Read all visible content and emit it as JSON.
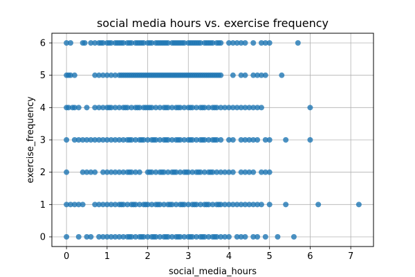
{
  "chart_data": {
    "type": "scatter",
    "title": "social media hours vs. exercise frequency",
    "xlabel": "social_media_hours",
    "ylabel": "exercise_frequency",
    "xlim": [
      -0.36,
      7.56
    ],
    "ylim": [
      -0.3,
      6.3
    ],
    "xticks": [
      0,
      1,
      2,
      3,
      4,
      5,
      6,
      7
    ],
    "yticks": [
      0,
      1,
      2,
      3,
      4,
      5,
      6
    ],
    "grid": true,
    "legend": "none",
    "marker_color": "#1f77b4",
    "marker_alpha": 0.8,
    "series": [
      {
        "y": 6,
        "x": [
          0,
          0.1,
          0.4,
          0.45,
          0.6,
          0.7,
          0.8,
          0.85,
          0.9,
          1.0,
          1.05,
          1.1,
          1.2,
          1.25,
          1.3,
          1.35,
          1.4,
          1.5,
          1.55,
          1.6,
          1.7,
          1.75,
          1.8,
          1.85,
          1.9,
          2.0,
          2.05,
          2.1,
          2.2,
          2.25,
          2.3,
          2.35,
          2.4,
          2.45,
          2.5,
          2.6,
          2.65,
          2.7,
          2.75,
          2.8,
          2.85,
          2.9,
          3.0,
          3.05,
          3.1,
          3.15,
          3.2,
          3.25,
          3.3,
          3.4,
          3.45,
          3.5,
          3.55,
          3.6,
          3.7,
          3.75,
          3.8,
          4.0,
          4.1,
          4.2,
          4.3,
          4.4,
          4.6,
          4.8,
          4.9,
          5.0,
          5.7
        ]
      },
      {
        "y": 5,
        "x": [
          0,
          0.05,
          0.1,
          0.2,
          0.7,
          0.8,
          0.9,
          1.0,
          1.1,
          1.2,
          1.3,
          1.35,
          1.4,
          1.45,
          1.5,
          1.55,
          1.6,
          1.65,
          1.7,
          1.75,
          1.8,
          1.85,
          1.9,
          1.95,
          2.0,
          2.05,
          2.1,
          2.15,
          2.2,
          2.25,
          2.3,
          2.35,
          2.4,
          2.45,
          2.5,
          2.55,
          2.6,
          2.65,
          2.7,
          2.75,
          2.8,
          2.85,
          2.9,
          2.95,
          3.0,
          3.05,
          3.1,
          3.15,
          3.2,
          3.25,
          3.3,
          3.35,
          3.4,
          3.45,
          3.5,
          3.55,
          3.6,
          3.65,
          3.7,
          3.75,
          3.8,
          4.1,
          4.3,
          4.4,
          4.6,
          4.7,
          4.8,
          4.9,
          5.3
        ]
      },
      {
        "y": 4,
        "x": [
          0,
          0.05,
          0.15,
          0.2,
          0.3,
          0.5,
          0.7,
          0.8,
          0.9,
          1.0,
          1.05,
          1.1,
          1.2,
          1.3,
          1.4,
          1.45,
          1.5,
          1.6,
          1.7,
          1.75,
          1.8,
          1.9,
          1.95,
          2.0,
          2.05,
          2.1,
          2.2,
          2.3,
          2.4,
          2.45,
          2.5,
          2.6,
          2.7,
          2.75,
          2.8,
          2.9,
          3.0,
          3.05,
          3.1,
          3.2,
          3.3,
          3.35,
          3.4,
          3.5,
          3.6,
          3.65,
          3.7,
          3.8,
          3.9,
          4.0,
          4.1,
          4.2,
          4.3,
          4.4,
          4.5,
          4.6,
          4.7,
          4.8,
          6.0
        ]
      },
      {
        "y": 3,
        "x": [
          0,
          0.2,
          0.3,
          0.4,
          0.5,
          0.6,
          0.7,
          0.8,
          0.9,
          1.0,
          1.1,
          1.2,
          1.3,
          1.4,
          1.5,
          1.55,
          1.6,
          1.7,
          1.8,
          1.85,
          1.9,
          2.0,
          2.1,
          2.15,
          2.2,
          2.3,
          2.4,
          2.45,
          2.5,
          2.6,
          2.7,
          2.75,
          2.8,
          2.9,
          3.0,
          3.05,
          3.1,
          3.2,
          3.3,
          3.35,
          3.4,
          3.5,
          3.6,
          3.65,
          3.7,
          3.8,
          4.0,
          4.1,
          4.3,
          4.4,
          4.5,
          4.6,
          4.7,
          4.9,
          5.0,
          5.4,
          6.0
        ]
      },
      {
        "y": 2,
        "x": [
          0,
          0.4,
          0.5,
          0.6,
          0.7,
          0.9,
          1.0,
          1.1,
          1.2,
          1.3,
          1.4,
          1.5,
          1.55,
          1.6,
          1.7,
          1.8,
          2.0,
          2.05,
          2.1,
          2.2,
          2.3,
          2.35,
          2.4,
          2.5,
          2.6,
          2.65,
          2.7,
          2.8,
          2.9,
          2.95,
          3.0,
          3.1,
          3.2,
          3.25,
          3.3,
          3.4,
          3.5,
          3.55,
          3.6,
          3.7,
          3.8,
          3.9,
          4.0,
          4.1,
          4.3,
          4.4,
          4.5,
          4.6,
          4.8,
          4.9,
          5.0
        ]
      },
      {
        "y": 1,
        "x": [
          0,
          0.1,
          0.2,
          0.3,
          0.4,
          0.7,
          0.8,
          0.9,
          1.0,
          1.1,
          1.2,
          1.3,
          1.35,
          1.4,
          1.5,
          1.6,
          1.65,
          1.7,
          1.8,
          1.9,
          1.95,
          2.0,
          2.1,
          2.2,
          2.25,
          2.3,
          2.4,
          2.5,
          2.55,
          2.6,
          2.7,
          2.8,
          2.85,
          2.9,
          3.0,
          3.1,
          3.15,
          3.2,
          3.3,
          3.4,
          3.45,
          3.5,
          3.6,
          3.7,
          3.75,
          3.8,
          3.9,
          4.0,
          4.1,
          4.2,
          4.3,
          4.4,
          4.5,
          4.6,
          4.7,
          4.8,
          5.0,
          5.4,
          6.2,
          7.2
        ]
      },
      {
        "y": 0,
        "x": [
          0,
          0.3,
          0.5,
          0.6,
          0.8,
          0.9,
          1.0,
          1.1,
          1.2,
          1.3,
          1.4,
          1.5,
          1.55,
          1.6,
          1.7,
          1.8,
          1.85,
          1.9,
          2.0,
          2.1,
          2.15,
          2.2,
          2.3,
          2.4,
          2.45,
          2.5,
          2.6,
          2.7,
          2.75,
          2.8,
          2.9,
          3.0,
          3.05,
          3.1,
          3.2,
          3.3,
          3.35,
          3.4,
          3.5,
          3.6,
          3.65,
          3.7,
          3.8,
          3.9,
          4.0,
          4.2,
          4.3,
          4.4,
          4.6,
          4.7,
          4.9,
          5.2,
          5.6
        ]
      }
    ]
  }
}
